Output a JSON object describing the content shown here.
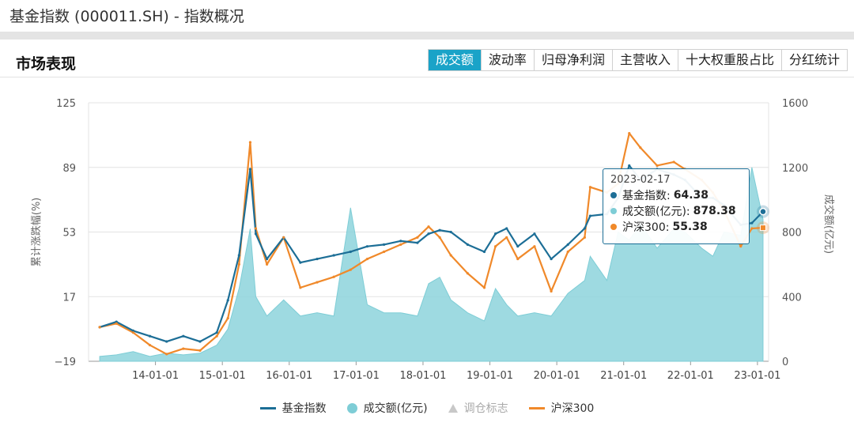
{
  "window": {
    "title": "基金指数 (000011.SH) - 指数概况"
  },
  "section": {
    "title": "市场表现"
  },
  "tabs": [
    {
      "label": "成交额",
      "active": true
    },
    {
      "label": "波动率",
      "active": false
    },
    {
      "label": "归母净利润",
      "active": false
    },
    {
      "label": "主营收入",
      "active": false
    },
    {
      "label": "十大权重股占比",
      "active": false
    },
    {
      "label": "分红统计",
      "active": false
    }
  ],
  "colors": {
    "fund_index": "#1c6e96",
    "turnover": "#7ecdd6",
    "hs300": "#f0892a",
    "tab_active": "#1aa3c8"
  },
  "tooltip": {
    "date": "2023-02-17",
    "rows": [
      {
        "label": "基金指数:",
        "value": "64.38"
      },
      {
        "label": "成交额(亿元):",
        "value": "878.38"
      },
      {
        "label": "沪深300:",
        "value": "55.38"
      }
    ]
  },
  "legend": [
    {
      "label": "基金指数"
    },
    {
      "label": "成交额(亿元)"
    },
    {
      "label": "调仓标志"
    },
    {
      "label": "沪深300"
    }
  ],
  "chart_data": {
    "type": "line",
    "ylabel": "累计涨跌幅(%)",
    "y2label": "成交额(亿元)",
    "ylim": [
      -19,
      125
    ],
    "y2lim": [
      0,
      1600
    ],
    "yticks": [
      "125",
      "89",
      "53",
      "17",
      "−19"
    ],
    "y2ticks": [
      "1600",
      "1200",
      "800",
      "400",
      "0"
    ],
    "xticks": [
      "14-01-01",
      "15-01-01",
      "16-01-01",
      "17-01-01",
      "18-01-01",
      "19-01-01",
      "20-01-01",
      "21-01-01",
      "22-01-01",
      "23-01-01"
    ],
    "x": [
      "2013-03",
      "2013-06",
      "2013-09",
      "2013-12",
      "2014-03",
      "2014-06",
      "2014-09",
      "2014-12",
      "2015-02",
      "2015-04",
      "2015-06",
      "2015-07",
      "2015-09",
      "2015-12",
      "2016-03",
      "2016-06",
      "2016-09",
      "2016-12",
      "2017-03",
      "2017-06",
      "2017-09",
      "2017-12",
      "2018-02",
      "2018-04",
      "2018-06",
      "2018-09",
      "2018-12",
      "2019-02",
      "2019-04",
      "2019-06",
      "2019-09",
      "2019-12",
      "2020-03",
      "2020-06",
      "2020-07",
      "2020-10",
      "2020-12",
      "2021-02",
      "2021-04",
      "2021-07",
      "2021-10",
      "2021-12",
      "2022-03",
      "2022-05",
      "2022-07",
      "2022-10",
      "2022-12",
      "2023-02"
    ],
    "series": [
      {
        "name": "基金指数",
        "axis": "left",
        "values": [
          0,
          3,
          -2,
          -5,
          -8,
          -5,
          -8,
          -3,
          15,
          40,
          88,
          52,
          38,
          50,
          36,
          38,
          40,
          42,
          45,
          46,
          48,
          47,
          52,
          54,
          53,
          46,
          42,
          52,
          55,
          45,
          52,
          38,
          46,
          55,
          62,
          63,
          72,
          90,
          82,
          88,
          85,
          82,
          72,
          72,
          68,
          57,
          58,
          64.38
        ]
      },
      {
        "name": "成交额(亿元)",
        "axis": "right",
        "values": [
          30,
          40,
          60,
          30,
          50,
          40,
          50,
          100,
          200,
          450,
          820,
          400,
          280,
          380,
          280,
          300,
          280,
          950,
          350,
          300,
          300,
          280,
          480,
          520,
          380,
          300,
          250,
          450,
          350,
          280,
          300,
          280,
          420,
          500,
          650,
          500,
          800,
          750,
          850,
          700,
          820,
          800,
          700,
          650,
          800,
          780,
          1200,
          878.38
        ]
      },
      {
        "name": "沪深300",
        "axis": "left",
        "values": [
          0,
          2,
          -3,
          -10,
          -15,
          -12,
          -13,
          -5,
          5,
          35,
          103,
          55,
          35,
          50,
          22,
          25,
          28,
          32,
          38,
          42,
          46,
          50,
          56,
          50,
          40,
          30,
          22,
          45,
          50,
          38,
          45,
          20,
          42,
          50,
          78,
          75,
          80,
          108,
          100,
          90,
          92,
          88,
          82,
          75,
          65,
          45,
          55,
          55.38
        ]
      }
    ]
  }
}
